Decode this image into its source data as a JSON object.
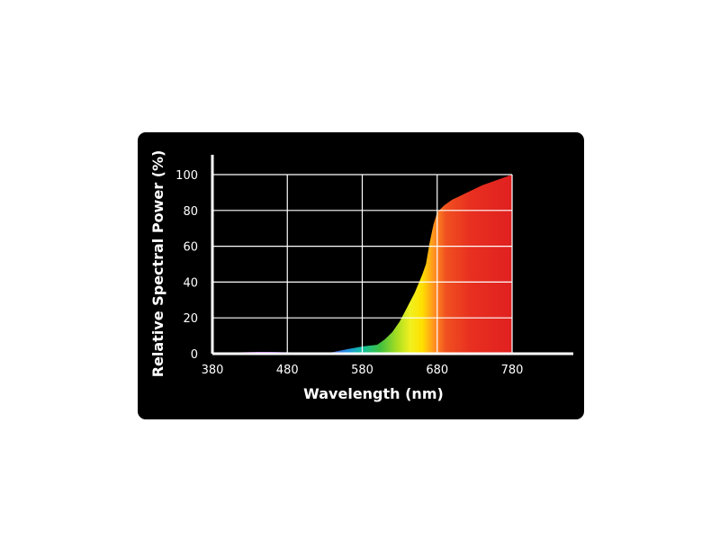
{
  "chart_data": {
    "type": "area",
    "xlabel": "Wavelength (nm)",
    "ylabel": "Relative Spectral Power (%)",
    "xlim": [
      380,
      780
    ],
    "ylim": [
      0,
      100
    ],
    "x_ticks": [
      "380",
      "480",
      "580",
      "680",
      "780"
    ],
    "y_ticks": [
      "0",
      "20",
      "40",
      "60",
      "80",
      "100"
    ],
    "grid": true,
    "series": [
      {
        "x": [
          380,
          400,
          420,
          440,
          460,
          480,
          500,
          520,
          540,
          560,
          580,
          590,
          600,
          610,
          620,
          630,
          640,
          650,
          660,
          665,
          670,
          675,
          680,
          690,
          700,
          720,
          740,
          760,
          780
        ],
        "y": [
          0,
          0.4,
          0.8,
          1,
          1,
          0.8,
          0.6,
          0.4,
          0.8,
          2.5,
          4,
          4.5,
          5,
          8,
          12,
          18,
          26,
          34,
          44,
          50,
          62,
          72,
          79,
          83,
          86,
          90,
          94,
          97,
          100
        ]
      }
    ],
    "colors": {
      "background": "#000000",
      "grid": "#ffffff",
      "gradient_stops": [
        "#e040d0",
        "#6040d0",
        "#2090e0",
        "#10c0a0",
        "#40c040",
        "#b0e020",
        "#f0f020",
        "#ffe000",
        "#ff9020",
        "#f05020",
        "#e83020",
        "#e02020"
      ]
    }
  }
}
